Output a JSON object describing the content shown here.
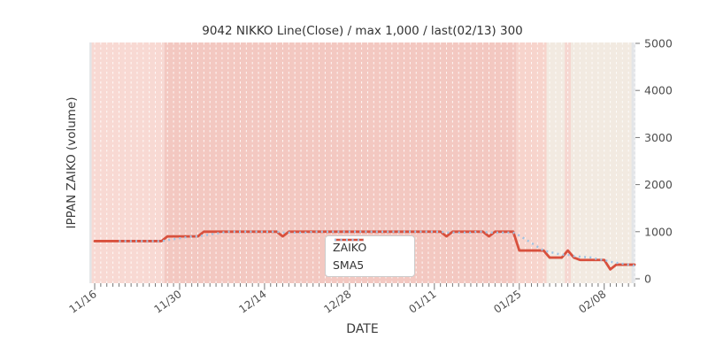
{
  "chart_data": {
    "type": "line",
    "title": "9042 NIKKO Line(Close) / max 1,000 / last(02/13) 300",
    "xlabel": "DATE",
    "ylabel": "IPPAN ZAIKO (volume)",
    "ylim": [
      0,
      5000
    ],
    "yticks": [
      0,
      1000,
      2000,
      3000,
      4000,
      5000
    ],
    "xticks": [
      {
        "day": 0,
        "label": "11/16"
      },
      {
        "day": 14,
        "label": "11/30"
      },
      {
        "day": 28,
        "label": "12/14"
      },
      {
        "day": 42,
        "label": "12/28"
      },
      {
        "day": 56,
        "label": "01/11"
      },
      {
        "day": 70,
        "label": "01/25"
      },
      {
        "day": 84,
        "label": "02/08"
      }
    ],
    "n_points": 90,
    "last_point": {
      "date": "02/13",
      "value": 300
    },
    "max_value": 1000,
    "grid": {
      "vertical_daily": true,
      "color": "#ffffff",
      "dashed": true
    },
    "plot_bg": "#e3e5e8",
    "legend_position": "center",
    "series": [
      {
        "name": "ZAIKO",
        "color": "#d8503d",
        "style": "solid",
        "values": [
          800,
          800,
          800,
          800,
          800,
          800,
          800,
          800,
          800,
          800,
          800,
          800,
          900,
          900,
          900,
          900,
          900,
          900,
          1000,
          1000,
          1000,
          1000,
          1000,
          1000,
          1000,
          1000,
          1000,
          1000,
          1000,
          1000,
          1000,
          900,
          1000,
          1000,
          1000,
          1000,
          1000,
          1000,
          1000,
          1000,
          1000,
          1000,
          1000,
          1000,
          1000,
          1000,
          1000,
          1000,
          1000,
          1000,
          1000,
          1000,
          1000,
          1000,
          1000,
          1000,
          1000,
          1000,
          900,
          1000,
          1000,
          1000,
          1000,
          1000,
          1000,
          900,
          1000,
          1000,
          1000,
          1000,
          600,
          600,
          600,
          600,
          600,
          450,
          450,
          450,
          600,
          450,
          400,
          400,
          400,
          400,
          400,
          200,
          300,
          300,
          300,
          300
        ]
      },
      {
        "name": "SMA5",
        "color": "#9fc3e3",
        "style": "dotted",
        "derived_from": "ZAIKO",
        "window": 5
      }
    ],
    "background_bands": [
      {
        "from_day": 0,
        "to_day": 11,
        "color": "#f8d9d3"
      },
      {
        "from_day": 12,
        "to_day": 69,
        "color": "#f3c8c1"
      },
      {
        "from_day": 70,
        "to_day": 74,
        "color": "#f7d4cc"
      },
      {
        "from_day": 75,
        "to_day": 77,
        "color": "#f2eae1"
      },
      {
        "from_day": 78,
        "to_day": 78,
        "color": "#f6d7d1"
      },
      {
        "from_day": 79,
        "to_day": 88,
        "color": "#f2eae1"
      }
    ]
  }
}
